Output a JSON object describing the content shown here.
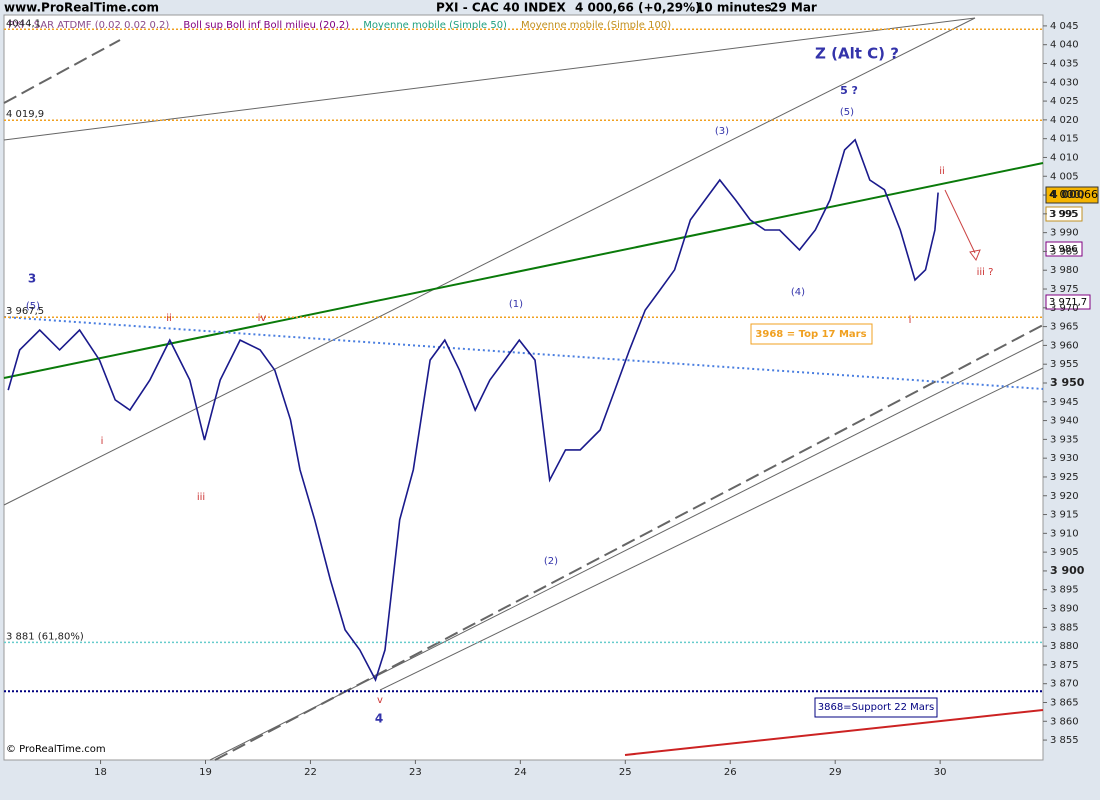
{
  "chart_data": {
    "type": "line",
    "site": "www.ProRealTime.com",
    "title": "PXI - CAC 40 INDEX",
    "last": "4 000,66 (+0,29%)",
    "interval": "10 minutes",
    "date": "29 Mar",
    "footer": "© ProRealTime.com",
    "legend": [
      {
        "name": "PXI - SAR ATDMF (0.02 0.02 0.2)",
        "color": "#8a4a8a"
      },
      {
        "name": "Boll sup Boll inf Boll milieu (20.2)",
        "color": "#800080"
      },
      {
        "name": "Moyenne mobile (Simple 50)",
        "color": "#20a080"
      },
      {
        "name": "Moyenne mobile (Simple 100)",
        "color": "#c09020"
      }
    ],
    "xlim": [
      0.08,
      9.98
    ],
    "xticks": [
      {
        "value": 1,
        "label": "18"
      },
      {
        "value": 2,
        "label": "19"
      },
      {
        "value": 3,
        "label": "22"
      },
      {
        "value": 4,
        "label": "23"
      },
      {
        "value": 5,
        "label": "24"
      },
      {
        "value": 6,
        "label": "25"
      },
      {
        "value": 7,
        "label": "26"
      },
      {
        "value": 8,
        "label": "29"
      },
      {
        "value": 9,
        "label": "30"
      }
    ],
    "ylim": [
      3849.7,
      4047.9
    ],
    "yticks": [
      {
        "value": 3855,
        "label": "3 855"
      },
      {
        "value": 3860,
        "label": "3 860"
      },
      {
        "value": 3865,
        "label": "3 865"
      },
      {
        "value": 3870,
        "label": "3 870"
      },
      {
        "value": 3875,
        "label": "3 875"
      },
      {
        "value": 3880,
        "label": "3 880"
      },
      {
        "value": 3885,
        "label": "3 885"
      },
      {
        "value": 3890,
        "label": "3 890"
      },
      {
        "value": 3895,
        "label": "3 895"
      },
      {
        "value": 3900,
        "label": "3 900"
      },
      {
        "value": 3905,
        "label": "3 905"
      },
      {
        "value": 3910,
        "label": "3 910"
      },
      {
        "value": 3915,
        "label": "3 915"
      },
      {
        "value": 3920,
        "label": "3 920"
      },
      {
        "value": 3925,
        "label": "3 925"
      },
      {
        "value": 3930,
        "label": "3 930"
      },
      {
        "value": 3935,
        "label": "3 935"
      },
      {
        "value": 3940,
        "label": "3 940"
      },
      {
        "value": 3945,
        "label": "3 945"
      },
      {
        "value": 3950,
        "label": "3 950"
      },
      {
        "value": 3955,
        "label": "3 955"
      },
      {
        "value": 3960,
        "label": "3 960"
      },
      {
        "value": 3965,
        "label": "3 965"
      },
      {
        "value": 3970,
        "label": "3 970"
      },
      {
        "value": 3975,
        "label": "3 975"
      },
      {
        "value": 3980,
        "label": "3 980"
      },
      {
        "value": 3985,
        "label": "3 985"
      },
      {
        "value": 3990,
        "label": "3 990"
      },
      {
        "value": 3995,
        "label": "3 995"
      },
      {
        "value": 4000,
        "label": "4 000"
      },
      {
        "value": 4005,
        "label": "4 005"
      },
      {
        "value": 4010,
        "label": "4 010"
      },
      {
        "value": 4015,
        "label": "4 015"
      },
      {
        "value": 4020,
        "label": "4 020"
      },
      {
        "value": 4025,
        "label": "4 025"
      },
      {
        "value": 4030,
        "label": "4 030"
      },
      {
        "value": 4035,
        "label": "4 035"
      },
      {
        "value": 4040,
        "label": "4 040"
      },
      {
        "value": 4045,
        "label": "4 045"
      }
    ],
    "levels": [
      {
        "value": 4044.1,
        "label": "4044,1",
        "color": "#f0a020"
      },
      {
        "value": 4019.9,
        "label": "4 019,9",
        "color": "#f0a020"
      },
      {
        "value": 3967.5,
        "label": "3 967,5",
        "color": "#f0a020"
      },
      {
        "value": 3881,
        "label": "3 881 (61,80%)",
        "color": "#66cccc"
      },
      {
        "value": 3868,
        "color": "#000080"
      }
    ],
    "price_tags": [
      "4 000,66",
      "3 995",
      "3 986",
      "3 971,7"
    ],
    "annotations": [
      "Z (Alt C) ?",
      "5 ?",
      "(5)",
      "(3)",
      "(1)",
      "(2)",
      "(4)",
      "3",
      "(5)",
      "4",
      "ii",
      "iv",
      "i",
      "iii",
      "v",
      "i",
      "ii",
      "iii ?",
      "3968 = Top 17 Mars",
      "3868=Support 22 Mars"
    ],
    "series": [
      {
        "name": "PXI",
        "color": "#1a1a8c",
        "x": [
          0.12,
          0.23,
          0.42,
          0.61,
          0.8,
          0.99,
          1.14,
          1.28,
          1.47,
          1.66,
          1.85,
          1.99,
          2.14,
          2.33,
          2.52,
          2.66,
          2.81,
          2.9,
          3.04,
          3.19,
          3.33,
          3.47,
          3.62,
          3.71,
          3.85,
          3.98,
          4.14,
          4.28,
          4.42,
          4.57,
          4.71,
          4.85,
          4.99,
          5.14,
          5.28,
          5.43,
          5.57,
          5.76,
          5.9,
          6.04,
          6.19,
          6.33,
          6.47,
          6.62,
          6.76,
          6.9,
          7.05,
          7.19,
          7.33,
          7.47,
          7.66,
          7.81,
          7.95,
          8.09,
          8.19,
          8.33,
          8.47,
          8.62,
          8.76,
          8.86,
          8.95,
          8.98
        ],
        "values": [
          3948.1,
          3958.8,
          3964.1,
          3958.8,
          3964.1,
          3956.1,
          3945.5,
          3942.8,
          3950.8,
          3961.4,
          3950.8,
          3934.8,
          3950.8,
          3961.4,
          3958.8,
          3953.4,
          3940.2,
          3926.9,
          3913.6,
          3897.6,
          3884.3,
          3879.0,
          3871.0,
          3879.0,
          3913.6,
          3926.9,
          3956.1,
          3961.4,
          3953.4,
          3942.8,
          3950.8,
          3956.1,
          3961.4,
          3956.1,
          3924.2,
          3932.2,
          3932.2,
          3937.5,
          3948.1,
          3958.8,
          3969.4,
          3974.7,
          3980.1,
          3993.4,
          3998.7,
          4004.0,
          3998.7,
          3993.4,
          3990.7,
          3990.7,
          3985.4,
          3990.7,
          3998.7,
          4012.0,
          4014.7,
          4004.0,
          4001.4,
          3990.7,
          3977.4,
          3980.1,
          3990.7,
          4000.66
        ]
      }
    ]
  }
}
